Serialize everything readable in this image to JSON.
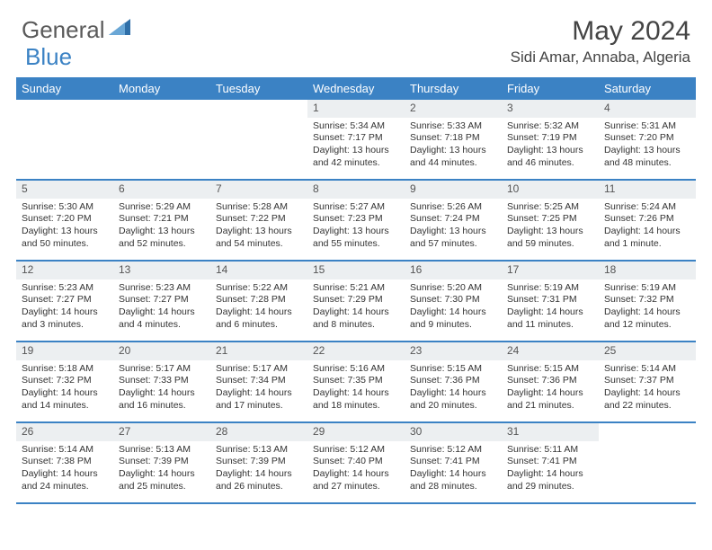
{
  "logo": {
    "text1": "General",
    "text2": "Blue",
    "triangle_color": "#2f6fa8"
  },
  "title": "May 2024",
  "location": "Sidi Amar, Annaba, Algeria",
  "colors": {
    "header_bg": "#3b82c4",
    "header_text": "#ffffff",
    "daynum_bg": "#eceff1",
    "border": "#3b82c4",
    "text": "#333333"
  },
  "typography": {
    "title_fontsize": 30,
    "location_fontsize": 17,
    "weekday_fontsize": 13,
    "body_fontsize": 10.5
  },
  "weekdays": [
    "Sunday",
    "Monday",
    "Tuesday",
    "Wednesday",
    "Thursday",
    "Friday",
    "Saturday"
  ],
  "weeks": [
    [
      {
        "empty": true
      },
      {
        "empty": true
      },
      {
        "empty": true
      },
      {
        "num": "1",
        "sunrise": "Sunrise: 5:34 AM",
        "sunset": "Sunset: 7:17 PM",
        "daylight": "Daylight: 13 hours and 42 minutes."
      },
      {
        "num": "2",
        "sunrise": "Sunrise: 5:33 AM",
        "sunset": "Sunset: 7:18 PM",
        "daylight": "Daylight: 13 hours and 44 minutes."
      },
      {
        "num": "3",
        "sunrise": "Sunrise: 5:32 AM",
        "sunset": "Sunset: 7:19 PM",
        "daylight": "Daylight: 13 hours and 46 minutes."
      },
      {
        "num": "4",
        "sunrise": "Sunrise: 5:31 AM",
        "sunset": "Sunset: 7:20 PM",
        "daylight": "Daylight: 13 hours and 48 minutes."
      }
    ],
    [
      {
        "num": "5",
        "sunrise": "Sunrise: 5:30 AM",
        "sunset": "Sunset: 7:20 PM",
        "daylight": "Daylight: 13 hours and 50 minutes."
      },
      {
        "num": "6",
        "sunrise": "Sunrise: 5:29 AM",
        "sunset": "Sunset: 7:21 PM",
        "daylight": "Daylight: 13 hours and 52 minutes."
      },
      {
        "num": "7",
        "sunrise": "Sunrise: 5:28 AM",
        "sunset": "Sunset: 7:22 PM",
        "daylight": "Daylight: 13 hours and 54 minutes."
      },
      {
        "num": "8",
        "sunrise": "Sunrise: 5:27 AM",
        "sunset": "Sunset: 7:23 PM",
        "daylight": "Daylight: 13 hours and 55 minutes."
      },
      {
        "num": "9",
        "sunrise": "Sunrise: 5:26 AM",
        "sunset": "Sunset: 7:24 PM",
        "daylight": "Daylight: 13 hours and 57 minutes."
      },
      {
        "num": "10",
        "sunrise": "Sunrise: 5:25 AM",
        "sunset": "Sunset: 7:25 PM",
        "daylight": "Daylight: 13 hours and 59 minutes."
      },
      {
        "num": "11",
        "sunrise": "Sunrise: 5:24 AM",
        "sunset": "Sunset: 7:26 PM",
        "daylight": "Daylight: 14 hours and 1 minute."
      }
    ],
    [
      {
        "num": "12",
        "sunrise": "Sunrise: 5:23 AM",
        "sunset": "Sunset: 7:27 PM",
        "daylight": "Daylight: 14 hours and 3 minutes."
      },
      {
        "num": "13",
        "sunrise": "Sunrise: 5:23 AM",
        "sunset": "Sunset: 7:27 PM",
        "daylight": "Daylight: 14 hours and 4 minutes."
      },
      {
        "num": "14",
        "sunrise": "Sunrise: 5:22 AM",
        "sunset": "Sunset: 7:28 PM",
        "daylight": "Daylight: 14 hours and 6 minutes."
      },
      {
        "num": "15",
        "sunrise": "Sunrise: 5:21 AM",
        "sunset": "Sunset: 7:29 PM",
        "daylight": "Daylight: 14 hours and 8 minutes."
      },
      {
        "num": "16",
        "sunrise": "Sunrise: 5:20 AM",
        "sunset": "Sunset: 7:30 PM",
        "daylight": "Daylight: 14 hours and 9 minutes."
      },
      {
        "num": "17",
        "sunrise": "Sunrise: 5:19 AM",
        "sunset": "Sunset: 7:31 PM",
        "daylight": "Daylight: 14 hours and 11 minutes."
      },
      {
        "num": "18",
        "sunrise": "Sunrise: 5:19 AM",
        "sunset": "Sunset: 7:32 PM",
        "daylight": "Daylight: 14 hours and 12 minutes."
      }
    ],
    [
      {
        "num": "19",
        "sunrise": "Sunrise: 5:18 AM",
        "sunset": "Sunset: 7:32 PM",
        "daylight": "Daylight: 14 hours and 14 minutes."
      },
      {
        "num": "20",
        "sunrise": "Sunrise: 5:17 AM",
        "sunset": "Sunset: 7:33 PM",
        "daylight": "Daylight: 14 hours and 16 minutes."
      },
      {
        "num": "21",
        "sunrise": "Sunrise: 5:17 AM",
        "sunset": "Sunset: 7:34 PM",
        "daylight": "Daylight: 14 hours and 17 minutes."
      },
      {
        "num": "22",
        "sunrise": "Sunrise: 5:16 AM",
        "sunset": "Sunset: 7:35 PM",
        "daylight": "Daylight: 14 hours and 18 minutes."
      },
      {
        "num": "23",
        "sunrise": "Sunrise: 5:15 AM",
        "sunset": "Sunset: 7:36 PM",
        "daylight": "Daylight: 14 hours and 20 minutes."
      },
      {
        "num": "24",
        "sunrise": "Sunrise: 5:15 AM",
        "sunset": "Sunset: 7:36 PM",
        "daylight": "Daylight: 14 hours and 21 minutes."
      },
      {
        "num": "25",
        "sunrise": "Sunrise: 5:14 AM",
        "sunset": "Sunset: 7:37 PM",
        "daylight": "Daylight: 14 hours and 22 minutes."
      }
    ],
    [
      {
        "num": "26",
        "sunrise": "Sunrise: 5:14 AM",
        "sunset": "Sunset: 7:38 PM",
        "daylight": "Daylight: 14 hours and 24 minutes."
      },
      {
        "num": "27",
        "sunrise": "Sunrise: 5:13 AM",
        "sunset": "Sunset: 7:39 PM",
        "daylight": "Daylight: 14 hours and 25 minutes."
      },
      {
        "num": "28",
        "sunrise": "Sunrise: 5:13 AM",
        "sunset": "Sunset: 7:39 PM",
        "daylight": "Daylight: 14 hours and 26 minutes."
      },
      {
        "num": "29",
        "sunrise": "Sunrise: 5:12 AM",
        "sunset": "Sunset: 7:40 PM",
        "daylight": "Daylight: 14 hours and 27 minutes."
      },
      {
        "num": "30",
        "sunrise": "Sunrise: 5:12 AM",
        "sunset": "Sunset: 7:41 PM",
        "daylight": "Daylight: 14 hours and 28 minutes."
      },
      {
        "num": "31",
        "sunrise": "Sunrise: 5:11 AM",
        "sunset": "Sunset: 7:41 PM",
        "daylight": "Daylight: 14 hours and 29 minutes."
      },
      {
        "empty": true
      }
    ]
  ]
}
